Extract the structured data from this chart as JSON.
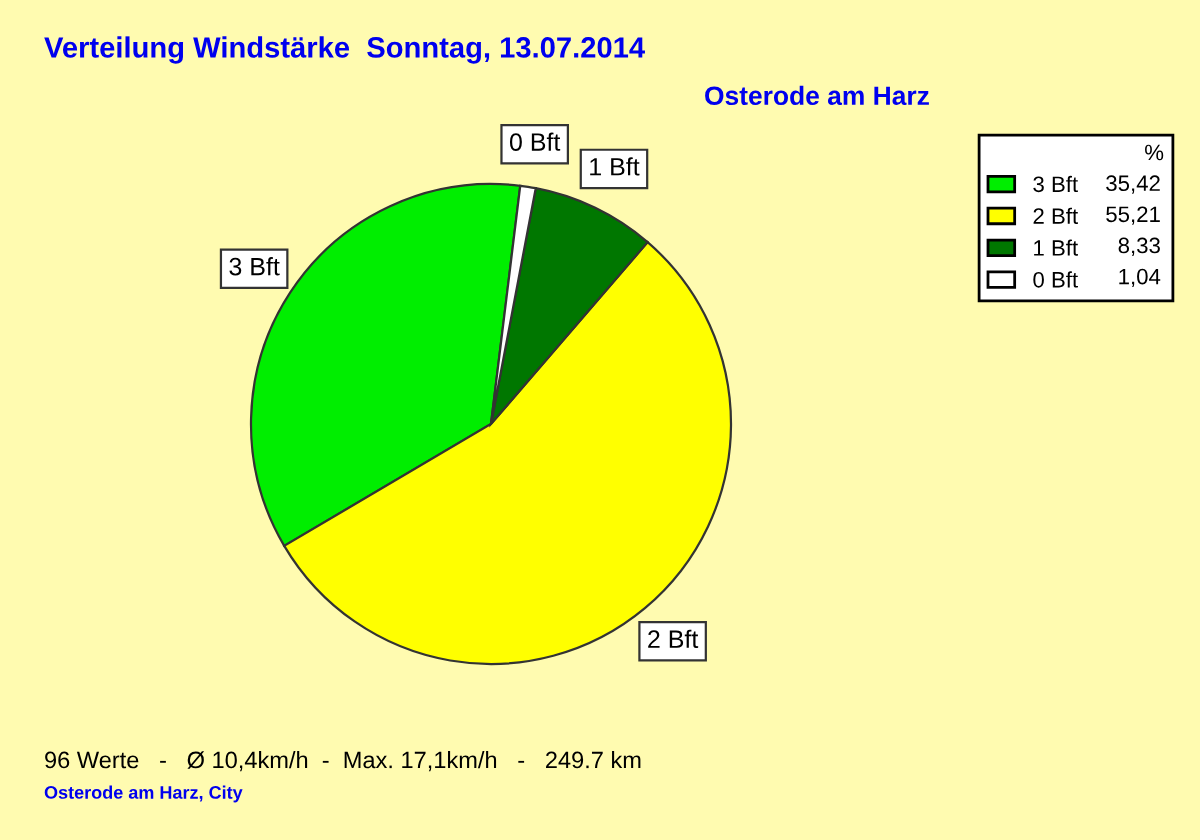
{
  "chart_data": {
    "type": "pie",
    "title": "Verteilung Windstärke  Sonntag, 13.07.2014",
    "subtitle": "Osterode am Harz",
    "categories": [
      "3 Bft",
      "2 Bft",
      "1 Bft",
      "0 Bft"
    ],
    "values": [
      35.42,
      55.21,
      8.33,
      1.04
    ],
    "value_labels": [
      "35,42",
      "55,21",
      "8,33",
      "1,04"
    ],
    "colors": [
      "#00ee00",
      "#ffff00",
      "#007700",
      "#ffffff"
    ],
    "legend": "top right",
    "legend_title": "%",
    "annotations": [
      "96 Werte   -   Ø 10,4km/h  -  Max. 17,1km/h   -   249.7 km",
      "Osterode am Harz, City"
    ]
  }
}
